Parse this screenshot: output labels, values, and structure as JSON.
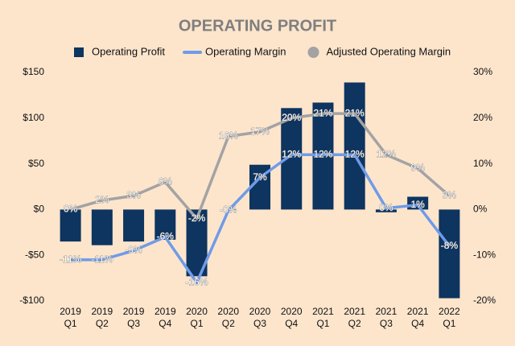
{
  "chart_data": {
    "type": "bar_line",
    "title": "OPERATING PROFIT",
    "categories": [
      {
        "year": "2019",
        "quarter": "Q1"
      },
      {
        "year": "2019",
        "quarter": "Q2"
      },
      {
        "year": "2019",
        "quarter": "Q3"
      },
      {
        "year": "2019",
        "quarter": "Q4"
      },
      {
        "year": "2020",
        "quarter": "Q1"
      },
      {
        "year": "2020",
        "quarter": "Q2"
      },
      {
        "year": "2020",
        "quarter": "Q3"
      },
      {
        "year": "2020",
        "quarter": "Q4"
      },
      {
        "year": "2021",
        "quarter": "Q1"
      },
      {
        "year": "2021",
        "quarter": "Q2"
      },
      {
        "year": "2021",
        "quarter": "Q3"
      },
      {
        "year": "2021",
        "quarter": "Q4"
      },
      {
        "year": "2022",
        "quarter": "Q1"
      }
    ],
    "series": [
      {
        "name": "Operating Profit",
        "type": "bar",
        "color": "#0e3460",
        "axis": "y",
        "values": [
          -35,
          -39,
          -35,
          -33,
          -73,
          0,
          49,
          111,
          117,
          139,
          -3,
          14,
          -97
        ],
        "value_labels": [
          null,
          null,
          null,
          null,
          null,
          "-",
          null,
          null,
          null,
          null,
          null,
          null,
          null
        ]
      },
      {
        "name": "Operating Margin",
        "type": "line",
        "color": "#6f9be8",
        "axis": "y2",
        "values": [
          -11,
          -11,
          -9,
          -6,
          -16,
          -0.2,
          7,
          12,
          12,
          12,
          0.3,
          1,
          -8
        ],
        "value_labels": [
          "-11%",
          "-11%",
          "-9%",
          "-6%",
          "-16%",
          "-0%",
          "7%",
          "12%",
          "12%",
          "12%",
          "0%",
          "1%",
          "-8%"
        ]
      },
      {
        "name": "Adjusted Operating Margin",
        "type": "line",
        "color": "#a3a3a3",
        "axis": "y2",
        "values": [
          0,
          2,
          3,
          6,
          -2,
          16,
          17,
          20,
          21,
          21,
          12,
          9,
          3
        ],
        "value_labels": [
          "0%",
          "2%",
          "3%",
          "6%",
          "-2%",
          "16%",
          "17%",
          "20%",
          "21%",
          "21%",
          "12%",
          "9%",
          "3%"
        ]
      }
    ],
    "ylim": [
      -100,
      150
    ],
    "yticks": [
      {
        "value": -100,
        "label": "-$100"
      },
      {
        "value": -50,
        "label": "-$50"
      },
      {
        "value": 0,
        "label": "$0"
      },
      {
        "value": 50,
        "label": "$50"
      },
      {
        "value": 100,
        "label": "$100"
      },
      {
        "value": 150,
        "label": "$150"
      }
    ],
    "y2lim": [
      -20,
      30
    ],
    "y2ticks": [
      {
        "value": -20,
        "label": "-20%"
      },
      {
        "value": -10,
        "label": "-10%"
      },
      {
        "value": 0,
        "label": "0%"
      },
      {
        "value": 10,
        "label": "10%"
      },
      {
        "value": 20,
        "label": "20%"
      },
      {
        "value": 30,
        "label": "30%"
      }
    ],
    "grid": false,
    "legend": "top"
  }
}
